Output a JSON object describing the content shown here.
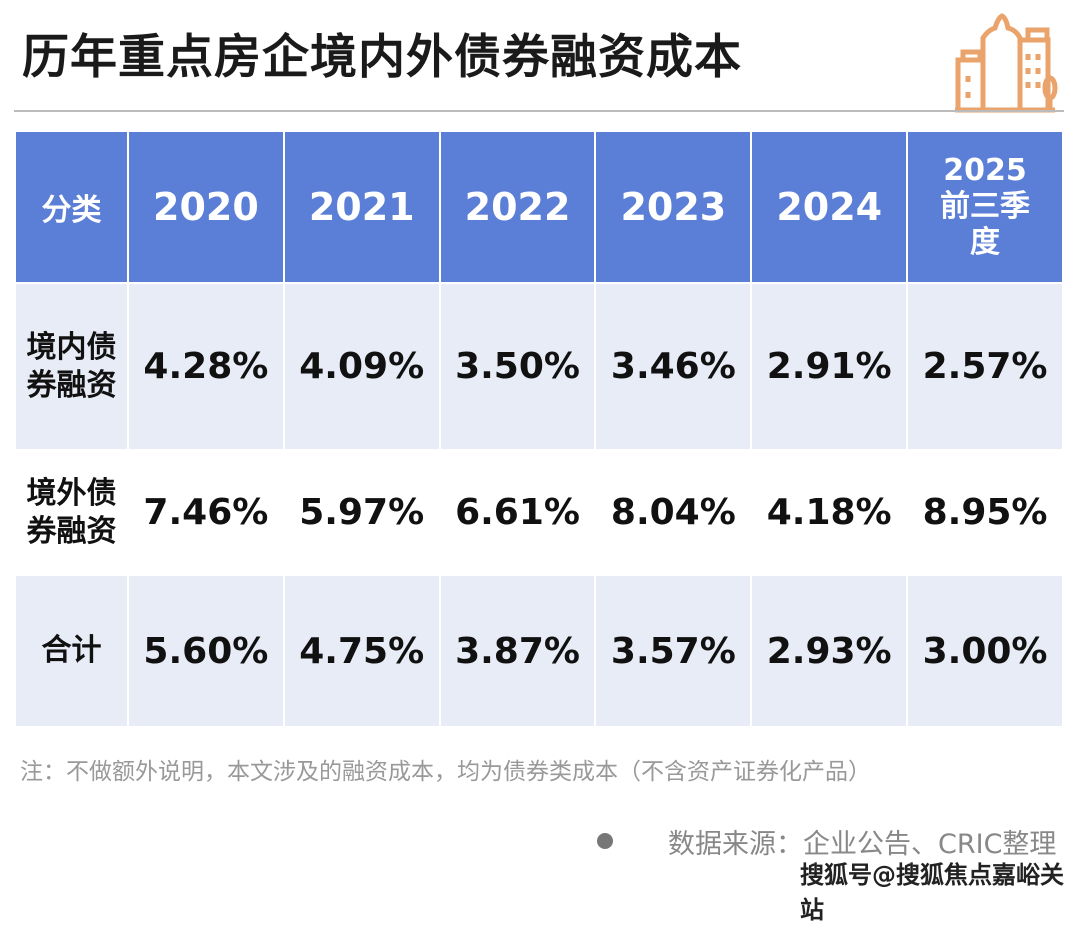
{
  "title": "历年重点房企境内外债券融资成本",
  "logo_icon": "city-buildings-icon",
  "accent_color": "#5b7fd6",
  "table": {
    "headers": [
      "分类",
      "2020",
      "2021",
      "2022",
      "2023",
      "2024",
      "2025前三季度"
    ],
    "header_last_lines": [
      "2025前",
      "三季度"
    ],
    "rows": [
      {
        "label": "境内债券融资",
        "label_lines": [
          "境内债",
          "券融资"
        ],
        "values": [
          "4.28%",
          "4.09%",
          "3.50%",
          "3.46%",
          "2.91%",
          "2.57%"
        ]
      },
      {
        "label": "境外债券融资",
        "label_lines": [
          "境外债",
          "券融资"
        ],
        "values": [
          "7.46%",
          "5.97%",
          "6.61%",
          "8.04%",
          "4.18%",
          "8.95%"
        ]
      },
      {
        "label": "合计",
        "label_lines": [
          "合计",
          ""
        ],
        "values": [
          "5.60%",
          "4.75%",
          "3.87%",
          "3.57%",
          "2.93%",
          "3.00%"
        ]
      }
    ]
  },
  "note": "注：不做额外说明，本文涉及的融资成本，均为债券类成本（不含资产证券化产品）",
  "source": "数据来源：企业公告、CRIC整理",
  "watermark": "搜狐号@搜狐焦点嘉峪关站"
}
